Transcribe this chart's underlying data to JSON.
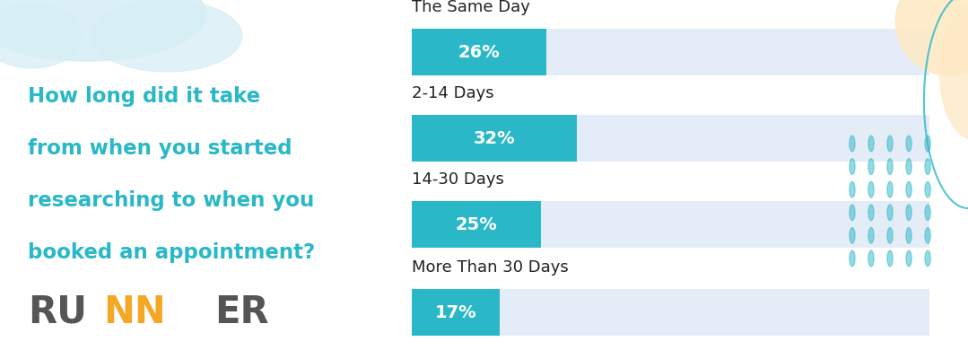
{
  "categories": [
    "The Same Day",
    "2-14 Days",
    "14-30 Days",
    "More Than 30 Days"
  ],
  "values": [
    26,
    32,
    25,
    17
  ],
  "labels": [
    "26%",
    "32%",
    "25%",
    "17%"
  ],
  "max_value": 100,
  "bar_color": "#2ab8c8",
  "bg_bar_color": "#e4ecf7",
  "question_text": [
    "How long did it take",
    "from when you started",
    "researching to when you",
    "booked an appointment?"
  ],
  "question_color": "#2ab8c8",
  "question_fontsize": 16.5,
  "label_fontsize": 14,
  "category_fontsize": 13,
  "logo_ru_color": "#555555",
  "logo_n_color": "#f5a623",
  "background_color": "#ffffff",
  "decoration_blob_color": "#d6eef5",
  "decoration_blob2_color": "#fde9c5",
  "decoration_dots_color": "#2ab8c8",
  "decoration_line_color": "#2ab8c8"
}
